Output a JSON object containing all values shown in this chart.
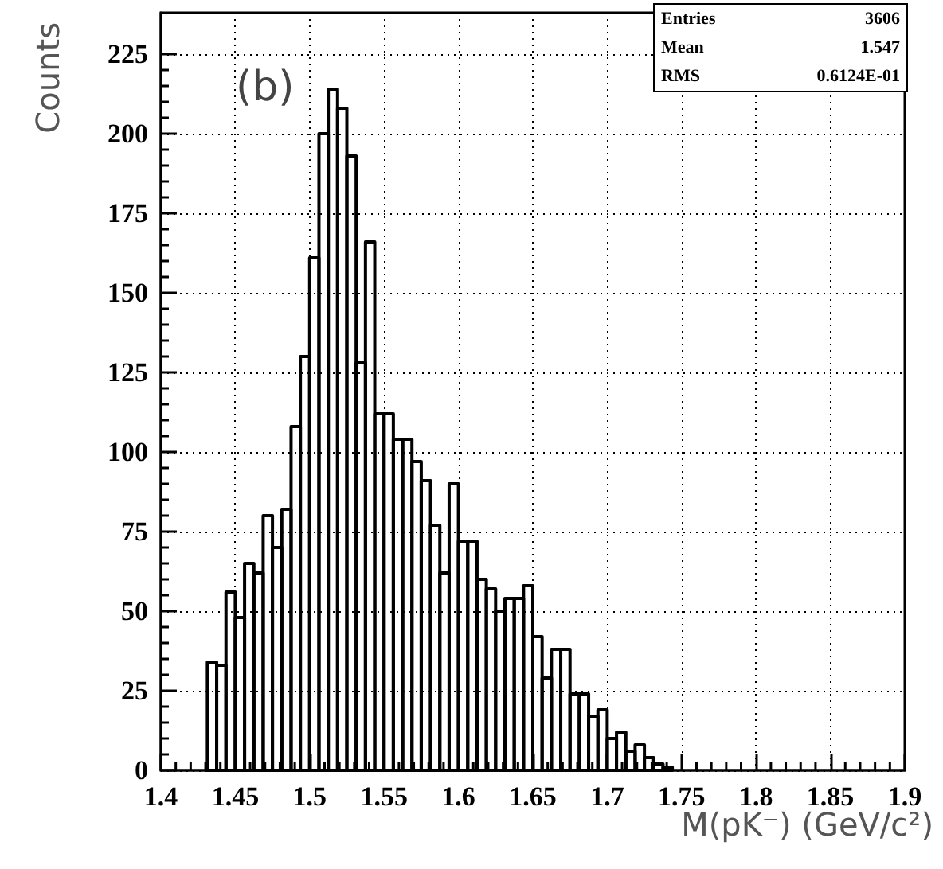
{
  "chart_data": {
    "type": "histogram",
    "xlabel": "M(pK⁻) (GeV/c²)",
    "ylabel": "Counts",
    "bins": [
      1.43125,
      1.4375,
      1.44375,
      1.45,
      1.45625,
      1.4625,
      1.46875,
      1.475,
      1.48125,
      1.4875,
      1.49375,
      1.5,
      1.50625,
      1.5125,
      1.51875,
      1.525,
      1.53125,
      1.5375,
      1.54375,
      1.55,
      1.55625,
      1.5625,
      1.56875,
      1.575,
      1.58125,
      1.5875,
      1.59375,
      1.6,
      1.60625,
      1.6125,
      1.61875,
      1.625,
      1.63125,
      1.6375,
      1.64375,
      1.65,
      1.65625,
      1.6625,
      1.66875,
      1.675,
      1.68125,
      1.6875,
      1.69375,
      1.7,
      1.70625,
      1.7125,
      1.71875,
      1.725,
      1.73125,
      1.7375,
      1.74375
    ],
    "values": [
      34,
      33,
      56,
      48,
      65,
      62,
      80,
      70,
      82,
      108,
      130,
      161,
      200,
      214,
      208,
      193,
      128,
      166,
      112,
      112,
      104,
      104,
      97,
      91,
      77,
      62,
      90,
      72,
      72,
      60,
      57,
      50,
      54,
      54,
      58,
      42,
      29,
      38,
      38,
      24,
      24,
      17,
      19,
      10,
      12,
      6,
      8,
      4,
      2,
      1
    ],
    "color": "#000000",
    "xlim": [
      1.4,
      1.9
    ],
    "xticks": [
      1.4,
      1.45,
      1.5,
      1.55,
      1.6,
      1.65,
      1.7,
      1.75,
      1.8,
      1.85,
      1.9
    ],
    "ylim": [
      0,
      238
    ],
    "yticks": [
      0,
      25,
      50,
      75,
      100,
      125,
      150,
      175,
      200,
      225
    ],
    "grid": true,
    "annotations": [
      "(b)",
      "Entries 3606",
      "Mean 1.547",
      "RMS 0.6124E-01"
    ]
  }
}
